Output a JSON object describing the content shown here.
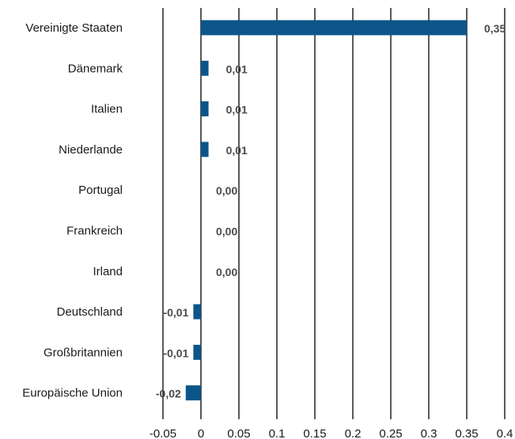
{
  "chart_data": {
    "type": "bar",
    "orientation": "horizontal",
    "categories": [
      "Vereinigte Staaten",
      "Dänemark",
      "Italien",
      "Niederlande",
      "Portugal",
      "Frankreich",
      "Irland",
      "Deutschland",
      "Großbritannien",
      "Europäische Union"
    ],
    "values": [
      0.35,
      0.01,
      0.01,
      0.01,
      0.0,
      0.0,
      0.0,
      -0.01,
      -0.01,
      -0.02
    ],
    "value_labels": [
      "0,35",
      "0,01",
      "0,01",
      "0,01",
      "0,00",
      "0,00",
      "0,00",
      "-0,01",
      "-0,01",
      "-0,02"
    ],
    "x_ticks": [
      -0.05,
      0,
      0.05,
      0.1,
      0.15,
      0.2,
      0.25,
      0.3,
      0.35,
      0.4
    ],
    "x_tick_labels": [
      "-0.05",
      "0",
      "0.05",
      "0.1",
      "0.15",
      "0.2",
      "0.25",
      "0.3",
      "0.35",
      "0.4"
    ],
    "xlim": [
      -0.05,
      0.4
    ],
    "title": "",
    "xlabel": "",
    "ylabel": "",
    "grid": "vertical",
    "legend": "none",
    "bar_color": "#0b5589",
    "grid_color": "#000000"
  }
}
